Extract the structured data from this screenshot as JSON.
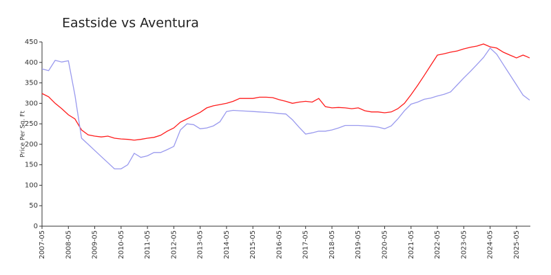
{
  "chart_data": {
    "type": "line",
    "title": "Eastside vs Aventura",
    "y_label": "Price Per Sq. Ft",
    "categories": [
      "2007-05",
      null,
      null,
      null,
      "2008-05",
      null,
      null,
      null,
      "2009-05",
      null,
      null,
      null,
      "2010-05",
      null,
      null,
      null,
      "2011-05",
      null,
      null,
      null,
      "2012-05",
      null,
      null,
      null,
      "2013-05",
      null,
      null,
      null,
      "2014-05",
      null,
      null,
      null,
      "2015-05",
      null,
      null,
      null,
      "2016-05",
      null,
      null,
      null,
      "2017-05",
      null,
      null,
      null,
      "2018-05",
      null,
      null,
      null,
      "2019-05",
      null,
      null,
      null,
      "2020-05",
      null,
      null,
      null,
      "2021-05",
      null,
      null,
      null,
      "2022-05",
      null,
      null,
      null,
      "2023-05",
      null,
      null,
      null,
      "2024-05",
      null,
      null,
      null,
      "2025-05",
      null,
      null
    ],
    "series": [
      {
        "color": "#ff1a1a",
        "values": [
          324,
          316,
          300,
          287,
          272,
          262,
          235,
          223,
          220,
          218,
          220,
          215,
          213,
          212,
          210,
          212,
          215,
          217,
          222,
          232,
          240,
          254,
          262,
          270,
          278,
          289,
          294,
          297,
          300,
          305,
          312,
          312,
          312,
          315,
          315,
          314,
          309,
          305,
          300,
          303,
          305,
          303,
          312,
          292,
          289,
          290,
          289,
          287,
          289,
          282,
          279,
          279,
          277,
          279,
          287,
          300,
          321,
          344,
          368,
          393,
          418,
          421,
          425,
          428,
          433,
          437,
          440,
          445,
          438,
          435,
          425,
          418,
          411,
          418,
          411
        ]
      },
      {
        "color": "#9999ee",
        "values": [
          384,
          380,
          405,
          401,
          404,
          320,
          215,
          200,
          185,
          170,
          155,
          140,
          140,
          150,
          178,
          168,
          172,
          180,
          180,
          187,
          195,
          235,
          250,
          248,
          238,
          240,
          245,
          255,
          280,
          283,
          282,
          281,
          280,
          279,
          278,
          277,
          275,
          274,
          260,
          242,
          225,
          228,
          232,
          232,
          235,
          240,
          246,
          246,
          246,
          245,
          244,
          242,
          238,
          245,
          262,
          282,
          298,
          303,
          310,
          313,
          318,
          322,
          328,
          345,
          362,
          378,
          395,
          412,
          435,
          420,
          395,
          370,
          345,
          320,
          308
        ]
      }
    ],
    "ylim": [
      0,
      450
    ],
    "yticks": [
      0,
      50,
      100,
      150,
      200,
      250,
      300,
      350,
      400,
      450
    ],
    "grid": false
  }
}
